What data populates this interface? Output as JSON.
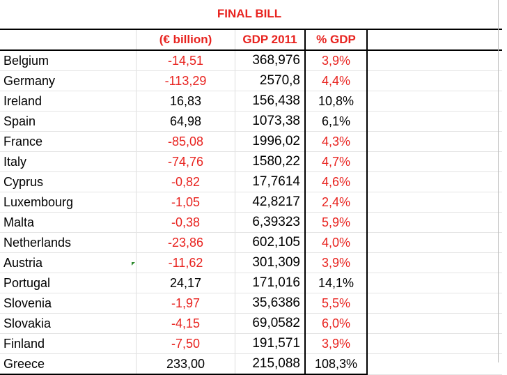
{
  "title": "FINAL BILL",
  "headers": {
    "country": "",
    "bill": "(€ billion)",
    "gdp": "GDP 2011",
    "pct": "% GDP"
  },
  "colors": {
    "accent_red": "#e8231f",
    "text": "#000000"
  },
  "rows": [
    {
      "country": "Belgium",
      "bill": "-14,51",
      "gdp": "368,976",
      "pct": "3,9%"
    },
    {
      "country": "Germany",
      "bill": "-113,29",
      "gdp": "2570,8",
      "pct": "4,4%"
    },
    {
      "country": "Ireland",
      "bill": "16,83",
      "gdp": "156,438",
      "pct": "10,8%"
    },
    {
      "country": "Spain",
      "bill": "64,98",
      "gdp": "1073,38",
      "pct": "6,1%"
    },
    {
      "country": "France",
      "bill": "-85,08",
      "gdp": "1996,02",
      "pct": "4,3%"
    },
    {
      "country": "Italy",
      "bill": "-74,76",
      "gdp": "1580,22",
      "pct": "4,7%"
    },
    {
      "country": "Cyprus",
      "bill": "-0,82",
      "gdp": "17,7614",
      "pct": "4,6%"
    },
    {
      "country": "Luxembourg",
      "bill": "-1,05",
      "gdp": "42,8217",
      "pct": "2,4%"
    },
    {
      "country": "Malta",
      "bill": "-0,38",
      "gdp": "6,39323",
      "pct": "5,9%"
    },
    {
      "country": "Netherlands",
      "bill": "-23,86",
      "gdp": "602,105",
      "pct": "4,0%"
    },
    {
      "country": "Austria",
      "bill": "-11,62",
      "gdp": "301,309",
      "pct": "3,9%"
    },
    {
      "country": "Portugal",
      "bill": "24,17",
      "gdp": "171,016",
      "pct": "14,1%"
    },
    {
      "country": "Slovenia",
      "bill": "-1,97",
      "gdp": "35,6386",
      "pct": "5,5%"
    },
    {
      "country": "Slovakia",
      "bill": "-4,15",
      "gdp": "69,0582",
      "pct": "6,0%"
    },
    {
      "country": "Finland",
      "bill": "-7,50",
      "gdp": "191,571",
      "pct": "3,9%"
    },
    {
      "country": "Greece",
      "bill": "233,00",
      "gdp": "215,088",
      "pct": "108,3%"
    }
  ]
}
